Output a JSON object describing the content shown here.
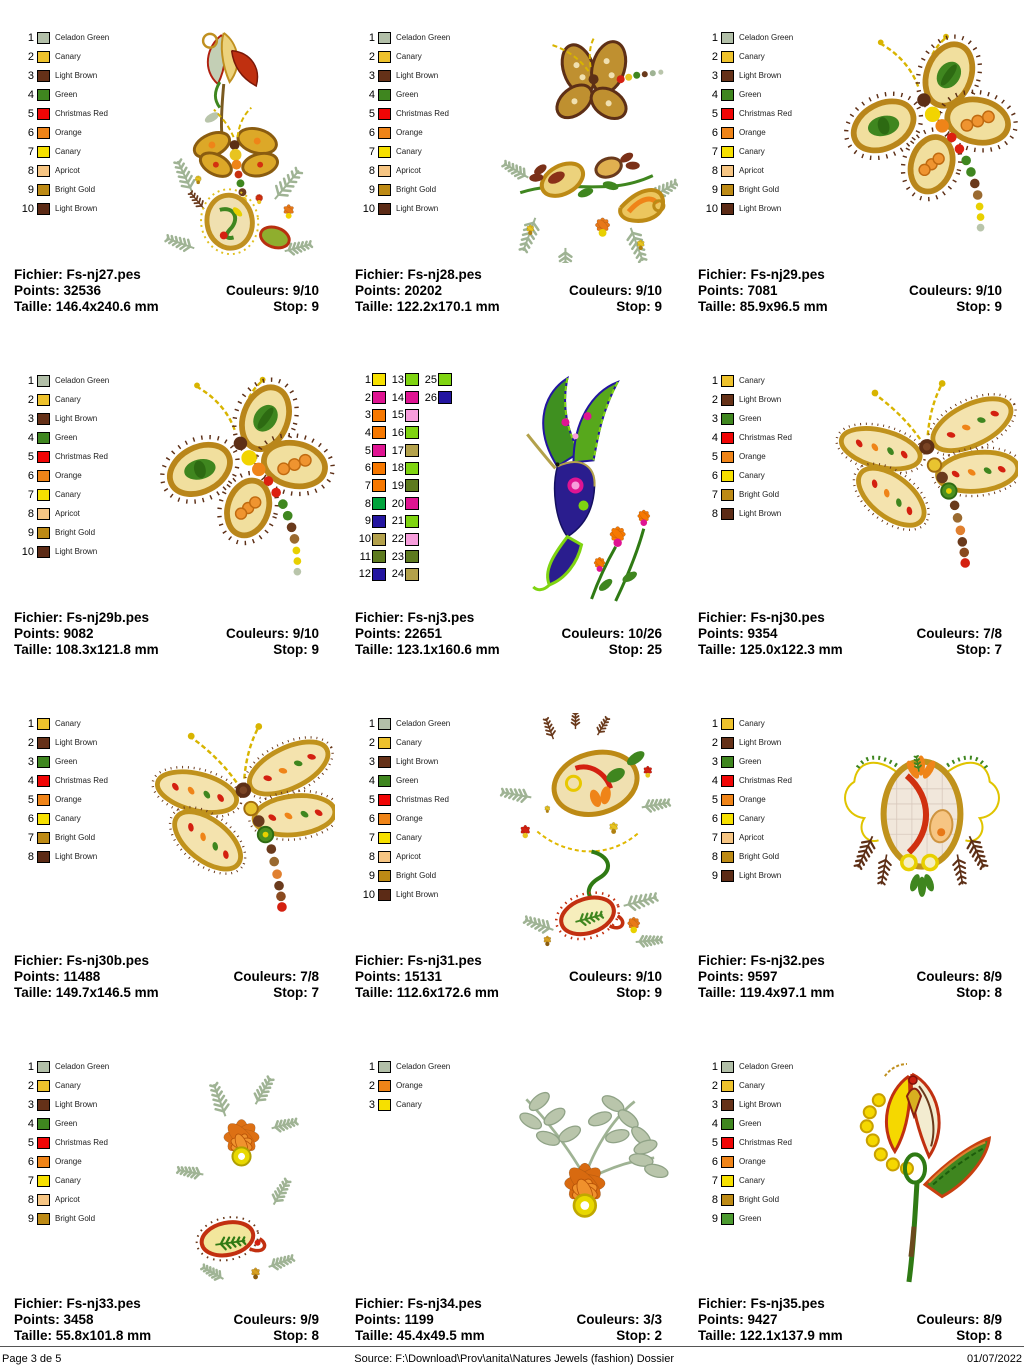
{
  "footer": {
    "page": "Page 3 de 5",
    "source": "Source: F:\\Download\\Prov\\anita\\Natures Jewels (fashion) Dossier",
    "date": "01/07/2022"
  },
  "cells": [
    {
      "fichier": "Fichier: Fs-nj27.pes",
      "points": "Points: 32536",
      "couleurs": "Couleurs: 9/10",
      "taille": "Taille: 146.4x240.6 mm",
      "stop": "Stop: 9",
      "design": "tulip-dragonfly-paisley",
      "legend": [
        {
          "n": 1,
          "label": "Celadon Green",
          "color": "#b2bfa8"
        },
        {
          "n": 2,
          "label": "Canary",
          "color": "#eec22c"
        },
        {
          "n": 3,
          "label": "Light Brown",
          "color": "#653118"
        },
        {
          "n": 4,
          "label": "Green",
          "color": "#3f861f"
        },
        {
          "n": 5,
          "label": "Christmas Red",
          "color": "#f00505"
        },
        {
          "n": 6,
          "label": "Orange",
          "color": "#ef8418"
        },
        {
          "n": 7,
          "label": "Canary",
          "color": "#f6e000"
        },
        {
          "n": 8,
          "label": "Apricot",
          "color": "#f6c583"
        },
        {
          "n": 9,
          "label": "Bright Gold",
          "color": "#bd8a15"
        },
        {
          "n": 10,
          "label": "Light Brown",
          "color": "#5c2b16"
        }
      ]
    },
    {
      "fichier": "Fichier: Fs-nj28.pes",
      "points": "Points: 20202",
      "couleurs": "Couleurs: 9/10",
      "taille": "Taille: 122.2x170.1 mm",
      "stop": "Stop: 9",
      "design": "dragonfly-floral-spray",
      "legend": [
        {
          "n": 1,
          "label": "Celadon Green",
          "color": "#b2bfa8"
        },
        {
          "n": 2,
          "label": "Canary",
          "color": "#eec22c"
        },
        {
          "n": 3,
          "label": "Light Brown",
          "color": "#653118"
        },
        {
          "n": 4,
          "label": "Green",
          "color": "#3f861f"
        },
        {
          "n": 5,
          "label": "Christmas Red",
          "color": "#f00505"
        },
        {
          "n": 6,
          "label": "Orange",
          "color": "#ef8418"
        },
        {
          "n": 7,
          "label": "Canary",
          "color": "#f6e000"
        },
        {
          "n": 8,
          "label": "Apricot",
          "color": "#f6c583"
        },
        {
          "n": 9,
          "label": "Bright Gold",
          "color": "#bd8a15"
        },
        {
          "n": 10,
          "label": "Light Brown",
          "color": "#5c2b16"
        }
      ]
    },
    {
      "fichier": "Fichier: Fs-nj29.pes",
      "points": "Points: 7081",
      "couleurs": "Couleurs: 9/10",
      "taille": "Taille: 85.9x96.5 mm",
      "stop": "Stop: 9",
      "design": "paisley-dragonfly",
      "legend": [
        {
          "n": 1,
          "label": "Celadon Green",
          "color": "#b2bfa8"
        },
        {
          "n": 2,
          "label": "Canary",
          "color": "#eec22c"
        },
        {
          "n": 3,
          "label": "Light Brown",
          "color": "#653118"
        },
        {
          "n": 4,
          "label": "Green",
          "color": "#3f861f"
        },
        {
          "n": 5,
          "label": "Christmas Red",
          "color": "#f00505"
        },
        {
          "n": 6,
          "label": "Orange",
          "color": "#ef8418"
        },
        {
          "n": 7,
          "label": "Canary",
          "color": "#f6e000"
        },
        {
          "n": 8,
          "label": "Apricot",
          "color": "#f6c583"
        },
        {
          "n": 9,
          "label": "Bright Gold",
          "color": "#bd8a15"
        },
        {
          "n": 10,
          "label": "Light Brown",
          "color": "#5c2b16"
        }
      ]
    },
    {
      "fichier": "Fichier: Fs-nj29b.pes",
      "points": "Points: 9082",
      "couleurs": "Couleurs: 9/10",
      "taille": "Taille: 108.3x121.8 mm",
      "stop": "Stop: 9",
      "design": "paisley-dragonfly",
      "legend": [
        {
          "n": 1,
          "label": "Celadon Green",
          "color": "#b2bfa8"
        },
        {
          "n": 2,
          "label": "Canary",
          "color": "#eec22c"
        },
        {
          "n": 3,
          "label": "Light Brown",
          "color": "#653118"
        },
        {
          "n": 4,
          "label": "Green",
          "color": "#3f861f"
        },
        {
          "n": 5,
          "label": "Christmas Red",
          "color": "#f00505"
        },
        {
          "n": 6,
          "label": "Orange",
          "color": "#ef8418"
        },
        {
          "n": 7,
          "label": "Canary",
          "color": "#f6e000"
        },
        {
          "n": 8,
          "label": "Apricot",
          "color": "#f6c583"
        },
        {
          "n": 9,
          "label": "Bright Gold",
          "color": "#bd8a15"
        },
        {
          "n": 10,
          "label": "Light Brown",
          "color": "#5c2b16"
        }
      ]
    },
    {
      "fichier": "Fichier: Fs-nj3.pes",
      "points": "Points: 22651",
      "couleurs": "Couleurs: 10/26",
      "taille": "Taille: 123.1x160.6 mm",
      "stop": "Stop: 25",
      "design": "hummingbird-flowers",
      "legend_compact": true,
      "legend": [
        {
          "n": 1,
          "color": "#f6e000"
        },
        {
          "n": 2,
          "color": "#df1492"
        },
        {
          "n": 3,
          "color": "#f67800"
        },
        {
          "n": 4,
          "color": "#f67800"
        },
        {
          "n": 5,
          "color": "#df1492"
        },
        {
          "n": 6,
          "color": "#f67800"
        },
        {
          "n": 7,
          "color": "#f67800"
        },
        {
          "n": 8,
          "color": "#00a33c"
        },
        {
          "n": 9,
          "color": "#2315a0"
        },
        {
          "n": 10,
          "color": "#b3a14b"
        },
        {
          "n": 11,
          "color": "#5d7a1e"
        },
        {
          "n": 12,
          "color": "#2315a0"
        },
        {
          "n": 13,
          "color": "#7fd411"
        },
        {
          "n": 14,
          "color": "#df1492"
        },
        {
          "n": 15,
          "color": "#f79ddc"
        },
        {
          "n": 16,
          "color": "#7fd411"
        },
        {
          "n": 17,
          "color": "#b3a14b"
        },
        {
          "n": 18,
          "color": "#7fd411"
        },
        {
          "n": 19,
          "color": "#5d7a1e"
        },
        {
          "n": 20,
          "color": "#df1492"
        },
        {
          "n": 21,
          "color": "#7fd411"
        },
        {
          "n": 22,
          "color": "#f79ddc"
        },
        {
          "n": 23,
          "color": "#5d7a1e"
        },
        {
          "n": 24,
          "color": "#b3a14b"
        },
        {
          "n": 25,
          "color": "#7fd411"
        },
        {
          "n": 26,
          "color": "#2315a0"
        }
      ]
    },
    {
      "fichier": "Fichier: Fs-nj30.pes",
      "points": "Points: 9354",
      "couleurs": "Couleurs: 7/8",
      "taille": "Taille: 125.0x122.3 mm",
      "stop": "Stop: 7",
      "design": "open-wing-dragonfly",
      "legend": [
        {
          "n": 1,
          "label": "Canary",
          "color": "#eec22c"
        },
        {
          "n": 2,
          "label": "Light Brown",
          "color": "#653118"
        },
        {
          "n": 3,
          "label": "Green",
          "color": "#3f861f"
        },
        {
          "n": 4,
          "label": "Christmas Red",
          "color": "#f00505"
        },
        {
          "n": 5,
          "label": "Orange",
          "color": "#ef8418"
        },
        {
          "n": 6,
          "label": "Canary",
          "color": "#f6e000"
        },
        {
          "n": 7,
          "label": "Bright Gold",
          "color": "#bd8a15"
        },
        {
          "n": 8,
          "label": "Light Brown",
          "color": "#5c2b16"
        }
      ]
    },
    {
      "fichier": "Fichier: Fs-nj30b.pes",
      "points": "Points: 11488",
      "couleurs": "Couleurs: 7/8",
      "taille": "Taille: 149.7x146.5 mm",
      "stop": "Stop: 7",
      "design": "open-wing-dragonfly",
      "legend": [
        {
          "n": 1,
          "label": "Canary",
          "color": "#eec22c"
        },
        {
          "n": 2,
          "label": "Light Brown",
          "color": "#653118"
        },
        {
          "n": 3,
          "label": "Green",
          "color": "#3f861f"
        },
        {
          "n": 4,
          "label": "Christmas Red",
          "color": "#f00505"
        },
        {
          "n": 5,
          "label": "Orange",
          "color": "#ef8418"
        },
        {
          "n": 6,
          "label": "Canary",
          "color": "#f6e000"
        },
        {
          "n": 7,
          "label": "Bright Gold",
          "color": "#bd8a15"
        },
        {
          "n": 8,
          "label": "Light Brown",
          "color": "#5c2b16"
        }
      ]
    },
    {
      "fichier": "Fichier: Fs-nj31.pes",
      "points": "Points: 15131",
      "couleurs": "Couleurs: 9/10",
      "taille": "Taille: 112.6x172.6 mm",
      "stop": "Stop: 9",
      "design": "paisley-pair",
      "legend": [
        {
          "n": 1,
          "label": "Celadon Green",
          "color": "#b2bfa8"
        },
        {
          "n": 2,
          "label": "Canary",
          "color": "#eec22c"
        },
        {
          "n": 3,
          "label": "Light Brown",
          "color": "#653118"
        },
        {
          "n": 4,
          "label": "Green",
          "color": "#3f861f"
        },
        {
          "n": 5,
          "label": "Christmas Red",
          "color": "#f00505"
        },
        {
          "n": 6,
          "label": "Orange",
          "color": "#ef8418"
        },
        {
          "n": 7,
          "label": "Canary",
          "color": "#f6e000"
        },
        {
          "n": 8,
          "label": "Apricot",
          "color": "#f6c583"
        },
        {
          "n": 9,
          "label": "Bright Gold",
          "color": "#bd8a15"
        },
        {
          "n": 10,
          "label": "Light Brown",
          "color": "#5c2b16"
        }
      ]
    },
    {
      "fichier": "Fichier: Fs-nj32.pes",
      "points": "Points: 9597",
      "couleurs": "Couleurs: 8/9",
      "taille": "Taille: 119.4x97.1 mm",
      "stop": "Stop: 8",
      "design": "paisley-egg",
      "legend": [
        {
          "n": 1,
          "label": "Canary",
          "color": "#eec22c"
        },
        {
          "n": 2,
          "label": "Light Brown",
          "color": "#653118"
        },
        {
          "n": 3,
          "label": "Green",
          "color": "#3f861f"
        },
        {
          "n": 4,
          "label": "Christmas Red",
          "color": "#f00505"
        },
        {
          "n": 5,
          "label": "Orange",
          "color": "#ef8418"
        },
        {
          "n": 6,
          "label": "Canary",
          "color": "#f6e000"
        },
        {
          "n": 7,
          "label": "Apricot",
          "color": "#f6c583"
        },
        {
          "n": 8,
          "label": "Bright Gold",
          "color": "#bd8a15"
        },
        {
          "n": 9,
          "label": "Light Brown",
          "color": "#5c2b16"
        }
      ]
    },
    {
      "fichier": "Fichier: Fs-nj33.pes",
      "points": "Points: 3458",
      "couleurs": "Couleurs: 9/9",
      "taille": "Taille: 55.8x101.8 mm",
      "stop": "Stop: 8",
      "design": "flower-paisley",
      "legend": [
        {
          "n": 1,
          "label": "Celadon Green",
          "color": "#b2bfa8"
        },
        {
          "n": 2,
          "label": "Canary",
          "color": "#eec22c"
        },
        {
          "n": 3,
          "label": "Light Brown",
          "color": "#653118"
        },
        {
          "n": 4,
          "label": "Green",
          "color": "#3f861f"
        },
        {
          "n": 5,
          "label": "Christmas Red",
          "color": "#f00505"
        },
        {
          "n": 6,
          "label": "Orange",
          "color": "#ef8418"
        },
        {
          "n": 7,
          "label": "Canary",
          "color": "#f6e000"
        },
        {
          "n": 8,
          "label": "Apricot",
          "color": "#f6c583"
        },
        {
          "n": 9,
          "label": "Bright Gold",
          "color": "#bd8a15"
        }
      ]
    },
    {
      "fichier": "Fichier: Fs-nj34.pes",
      "points": "Points: 1199",
      "couleurs": "Couleurs: 3/3",
      "taille": "Taille: 45.4x49.5 mm",
      "stop": "Stop: 2",
      "design": "orange-flower",
      "legend": [
        {
          "n": 1,
          "label": "Celadon Green",
          "color": "#b2bfa8"
        },
        {
          "n": 2,
          "label": "Orange",
          "color": "#ef8418"
        },
        {
          "n": 3,
          "label": "Canary",
          "color": "#f6e000"
        }
      ]
    },
    {
      "fichier": "Fichier: Fs-nj35.pes",
      "points": "Points: 9427",
      "couleurs": "Couleurs: 8/9",
      "taille": "Taille: 122.1x137.9 mm",
      "stop": "Stop: 8",
      "design": "tulip-stem",
      "legend": [
        {
          "n": 1,
          "label": "Celadon Green",
          "color": "#b2bfa8"
        },
        {
          "n": 2,
          "label": "Canary",
          "color": "#eec22c"
        },
        {
          "n": 3,
          "label": "Light Brown",
          "color": "#653118"
        },
        {
          "n": 4,
          "label": "Green",
          "color": "#3f861f"
        },
        {
          "n": 5,
          "label": "Christmas Red",
          "color": "#f00505"
        },
        {
          "n": 6,
          "label": "Orange",
          "color": "#ef8418"
        },
        {
          "n": 7,
          "label": "Canary",
          "color": "#f6e000"
        },
        {
          "n": 8,
          "label": "Bright Gold",
          "color": "#bd8a15"
        },
        {
          "n": 9,
          "label": "Green",
          "color": "#4c9a30"
        }
      ]
    }
  ]
}
